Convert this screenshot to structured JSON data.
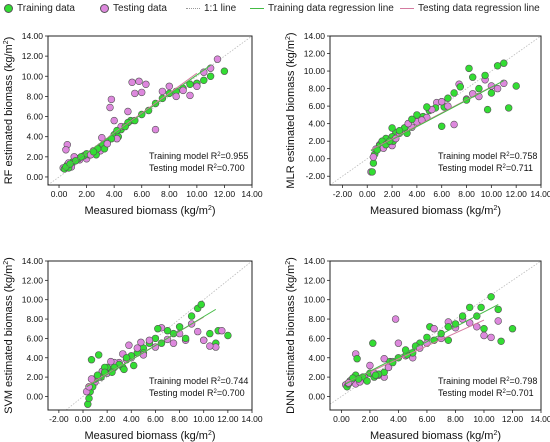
{
  "legend": {
    "training": "Training data",
    "testing": "Testing data",
    "one_to_one": "1:1 line",
    "train_reg": "Training data regression line",
    "test_reg": "Testing data regression line"
  },
  "colors": {
    "training": "#33dd33",
    "testing": "#dd88dd",
    "marker_edge": "#555555",
    "one_to_one": "#c8c8c8",
    "train_reg": "#44bb44",
    "test_reg": "#d47aa0"
  },
  "chart_data": [
    {
      "type": "scatter",
      "xlabel": "Measured biomass (kg/m",
      "ylabel": "RF estimated biomass (kg/m",
      "label_sup": "2",
      "label_close": ")",
      "xlim": [
        -0.8,
        14
      ],
      "ylim": [
        -0.8,
        14
      ],
      "xticks": [
        "0.00",
        "2.00",
        "4.00",
        "6.00",
        "8.00",
        "10.00",
        "12.00",
        "14.00"
      ],
      "yticks": [
        "0.00",
        "2.00",
        "4.00",
        "6.00",
        "8.00",
        "10.00",
        "12.00",
        "14.00"
      ],
      "train_r2": "Training model R2=0.955",
      "test_r2": "Testing model R2=0.700",
      "train_line": [
        [
          0.3,
          0.7
        ],
        [
          11,
          11.1
        ]
      ],
      "test_line": [
        [
          0.3,
          0.7
        ],
        [
          10,
          10.3
        ]
      ],
      "training": [
        [
          0.4,
          0.8
        ],
        [
          0.5,
          1.0
        ],
        [
          0.6,
          1.2
        ],
        [
          0.7,
          0.9
        ],
        [
          0.8,
          1.3
        ],
        [
          1.0,
          1.5
        ],
        [
          1.2,
          1.6
        ],
        [
          1.4,
          1.8
        ],
        [
          1.6,
          2.0
        ],
        [
          1.8,
          2.1
        ],
        [
          2.0,
          2.3
        ],
        [
          2.2,
          2.2
        ],
        [
          2.5,
          2.5
        ],
        [
          2.8,
          2.8
        ],
        [
          3.0,
          3.0
        ],
        [
          3.2,
          3.2
        ],
        [
          3.5,
          3.5
        ],
        [
          3.8,
          3.8
        ],
        [
          4.0,
          4.2
        ],
        [
          4.2,
          4.6
        ],
        [
          4.5,
          4.7
        ],
        [
          4.8,
          5.0
        ],
        [
          5.0,
          5.4
        ],
        [
          5.5,
          5.6
        ],
        [
          6.0,
          6.2
        ],
        [
          6.5,
          6.6
        ],
        [
          7.0,
          7.3
        ],
        [
          7.5,
          7.8
        ],
        [
          8.0,
          8.3
        ],
        [
          8.5,
          8.5
        ],
        [
          9.0,
          8.8
        ],
        [
          9.5,
          9.2
        ],
        [
          10.0,
          9.3
        ],
        [
          10.5,
          9.6
        ],
        [
          11.0,
          10.0
        ],
        [
          12.0,
          10.5
        ],
        [
          3.3,
          2.8
        ],
        [
          2.7,
          2.2
        ],
        [
          4.3,
          4.0
        ],
        [
          5.2,
          5.6
        ]
      ],
      "testing": [
        [
          0.3,
          0.9
        ],
        [
          0.5,
          2.7
        ],
        [
          0.6,
          3.2
        ],
        [
          0.7,
          1.4
        ],
        [
          0.9,
          1.0
        ],
        [
          1.1,
          2.0
        ],
        [
          1.5,
          1.7
        ],
        [
          2.0,
          1.8
        ],
        [
          2.5,
          2.6
        ],
        [
          3.0,
          2.6
        ],
        [
          3.5,
          3.3
        ],
        [
          3.7,
          6.9
        ],
        [
          3.8,
          7.7
        ],
        [
          4.0,
          5.6
        ],
        [
          4.2,
          3.8
        ],
        [
          4.5,
          5.0
        ],
        [
          5.0,
          6.5
        ],
        [
          5.3,
          9.4
        ],
        [
          5.5,
          8.3
        ],
        [
          5.8,
          9.5
        ],
        [
          6.0,
          8.4
        ],
        [
          6.3,
          9.2
        ],
        [
          7.0,
          4.7
        ],
        [
          7.5,
          8.5
        ],
        [
          8.0,
          9.0
        ],
        [
          8.5,
          8.0
        ],
        [
          9.0,
          8.6
        ],
        [
          9.5,
          8.1
        ],
        [
          10.0,
          9.0
        ],
        [
          10.5,
          10.4
        ],
        [
          11.0,
          10.8
        ],
        [
          11.5,
          11.7
        ],
        [
          3.1,
          3.9
        ],
        [
          2.3,
          2.2
        ]
      ]
    },
    {
      "type": "scatter",
      "xlabel": "Measured biomass (kg/m",
      "ylabel": "MLR estimated biomass (kg/m",
      "label_sup": "2",
      "label_close": ")",
      "xlim": [
        -3,
        14
      ],
      "ylim": [
        -3,
        14
      ],
      "xticks": [
        "-2.00",
        "0.00",
        "2.00",
        "4.00",
        "6.00",
        "8.00",
        "10.00",
        "12.00",
        "14.00"
      ],
      "yticks": [
        "-2.00",
        "0.00",
        "2.00",
        "4.00",
        "6.00",
        "8.00",
        "10.00",
        "12.00",
        "14.00"
      ],
      "train_r2": "Training model R2=0.758",
      "test_r2": "Testing model R2=0.711",
      "train_line": [
        [
          0.3,
          0.9
        ],
        [
          11,
          8.9
        ]
      ],
      "test_line": [
        [
          0.3,
          1.0
        ],
        [
          10,
          8.2
        ]
      ],
      "training": [
        [
          0.4,
          -1.5
        ],
        [
          0.5,
          -0.5
        ],
        [
          0.6,
          0.5
        ],
        [
          0.8,
          1.0
        ],
        [
          1.0,
          1.5
        ],
        [
          1.2,
          2.0
        ],
        [
          1.5,
          2.3
        ],
        [
          1.8,
          2.0
        ],
        [
          2.0,
          2.5
        ],
        [
          2.3,
          3.0
        ],
        [
          2.6,
          3.2
        ],
        [
          3.0,
          3.5
        ],
        [
          3.3,
          4.0
        ],
        [
          3.6,
          4.5
        ],
        [
          4.0,
          5.0
        ],
        [
          4.5,
          4.8
        ],
        [
          5.0,
          5.5
        ],
        [
          5.5,
          5.8
        ],
        [
          6.0,
          6.5
        ],
        [
          6.5,
          6.9
        ],
        [
          7.0,
          7.5
        ],
        [
          7.5,
          8.2
        ],
        [
          8.0,
          6.7
        ],
        [
          8.5,
          9.3
        ],
        [
          9.0,
          8.0
        ],
        [
          9.5,
          9.5
        ],
        [
          10.0,
          7.5
        ],
        [
          10.5,
          10.6
        ],
        [
          11.0,
          10.9
        ],
        [
          12.0,
          8.3
        ],
        [
          6.2,
          5.9
        ],
        [
          4.8,
          5.9
        ],
        [
          3.2,
          2.9
        ],
        [
          2.1,
          2.0
        ],
        [
          9.7,
          5.6
        ],
        [
          11.4,
          5.8
        ],
        [
          8.2,
          10.3
        ],
        [
          6.0,
          3.7
        ],
        [
          2.0,
          3.5
        ],
        [
          1.5,
          1.6
        ]
      ],
      "testing": [
        [
          0.3,
          -1.5
        ],
        [
          0.5,
          0.2
        ],
        [
          0.7,
          1.1
        ],
        [
          1.0,
          1.6
        ],
        [
          1.3,
          1.2
        ],
        [
          1.6,
          2.1
        ],
        [
          2.0,
          1.5
        ],
        [
          2.3,
          2.3
        ],
        [
          2.6,
          2.9
        ],
        [
          3.0,
          3.5
        ],
        [
          3.3,
          4.0
        ],
        [
          3.6,
          3.6
        ],
        [
          4.0,
          4.2
        ],
        [
          4.4,
          4.4
        ],
        [
          4.8,
          4.7
        ],
        [
          5.2,
          5.6
        ],
        [
          5.6,
          6.4
        ],
        [
          6.0,
          6.5
        ],
        [
          6.5,
          6.0
        ],
        [
          7.0,
          3.9
        ],
        [
          7.4,
          8.5
        ],
        [
          8.0,
          6.8
        ],
        [
          8.5,
          7.4
        ],
        [
          9.0,
          7.1
        ],
        [
          9.5,
          9.0
        ],
        [
          10.0,
          8.3
        ],
        [
          10.5,
          8.0
        ],
        [
          11.0,
          8.6
        ]
      ]
    },
    {
      "type": "scatter",
      "xlabel": "Measured biomass (kg/m",
      "ylabel": "SVM estimated biomass (kg/m",
      "label_sup": "2",
      "label_close": ")",
      "xlim": [
        -2.9,
        14
      ],
      "ylim": [
        -1.4,
        14
      ],
      "xticks": [
        "-2.00",
        "0.00",
        "2.00",
        "4.00",
        "6.00",
        "8.00",
        "10.00",
        "12.00",
        "14.00"
      ],
      "yticks": [
        "0.00",
        "2.00",
        "4.00",
        "6.00",
        "8.00",
        "10.00",
        "12.00",
        "14.00"
      ],
      "train_r2": "Training model R2=0.744",
      "test_r2": "Testing model R2=0.700",
      "train_line": [
        [
          0.3,
          1.0
        ],
        [
          11,
          9.0
        ]
      ],
      "test_line": [
        [
          0.3,
          1.1
        ],
        [
          10,
          8.2
        ]
      ],
      "training": [
        [
          0.4,
          -0.8
        ],
        [
          0.5,
          -0.2
        ],
        [
          0.6,
          0.5
        ],
        [
          0.8,
          1.0
        ],
        [
          1.0,
          1.8
        ],
        [
          1.2,
          2.2
        ],
        [
          1.5,
          2.0
        ],
        [
          1.8,
          2.5
        ],
        [
          2.0,
          3.0
        ],
        [
          2.3,
          2.8
        ],
        [
          2.6,
          3.0
        ],
        [
          3.0,
          3.3
        ],
        [
          3.3,
          3.0
        ],
        [
          3.6,
          4.0
        ],
        [
          4.0,
          4.2
        ],
        [
          4.5,
          4.5
        ],
        [
          5.0,
          5.0
        ],
        [
          5.5,
          5.5
        ],
        [
          6.0,
          6.0
        ],
        [
          6.5,
          5.5
        ],
        [
          7.0,
          6.8
        ],
        [
          7.5,
          6.5
        ],
        [
          8.0,
          7.2
        ],
        [
          8.5,
          6.0
        ],
        [
          9.0,
          8.3
        ],
        [
          9.5,
          9.1
        ],
        [
          10.0,
          5.8
        ],
        [
          10.5,
          6.5
        ],
        [
          11.0,
          5.5
        ],
        [
          12.0,
          6.3
        ],
        [
          6.2,
          7.0
        ],
        [
          5.0,
          4.5
        ],
        [
          3.4,
          2.8
        ],
        [
          2.4,
          2.5
        ],
        [
          9.8,
          9.5
        ],
        [
          1.8,
          3.0
        ],
        [
          1.3,
          4.3
        ],
        [
          0.7,
          3.8
        ],
        [
          4.2,
          3.2
        ],
        [
          11.2,
          6.8
        ]
      ],
      "testing": [
        [
          0.3,
          0.5
        ],
        [
          0.5,
          1.0
        ],
        [
          0.7,
          1.8
        ],
        [
          1.0,
          1.5
        ],
        [
          1.3,
          2.0
        ],
        [
          1.6,
          2.6
        ],
        [
          2.0,
          2.4
        ],
        [
          2.3,
          3.6
        ],
        [
          2.6,
          3.5
        ],
        [
          3.0,
          3.5
        ],
        [
          3.3,
          4.4
        ],
        [
          3.6,
          3.8
        ],
        [
          4.0,
          4.0
        ],
        [
          4.5,
          5.0
        ],
        [
          5.0,
          4.3
        ],
        [
          5.5,
          5.8
        ],
        [
          6.0,
          5.1
        ],
        [
          6.5,
          7.1
        ],
        [
          7.0,
          5.9
        ],
        [
          7.5,
          5.5
        ],
        [
          8.0,
          6.5
        ],
        [
          8.5,
          5.8
        ],
        [
          9.0,
          7.5
        ],
        [
          9.5,
          6.7
        ],
        [
          10.0,
          5.8
        ],
        [
          10.5,
          5.2
        ],
        [
          11.0,
          5.1
        ],
        [
          11.5,
          6.8
        ],
        [
          3.8,
          5.3
        ],
        [
          4.8,
          5.6
        ]
      ]
    },
    {
      "type": "scatter",
      "xlabel": "Measured biomass (kg/m",
      "ylabel": "DNN estimated biomass (kg/m",
      "label_sup": "2",
      "label_close": ")",
      "xlim": [
        -0.8,
        14
      ],
      "ylim": [
        -1.4,
        14
      ],
      "xticks": [
        "0.00",
        "2.00",
        "4.00",
        "6.00",
        "8.00",
        "10.00",
        "12.00",
        "14.00"
      ],
      "yticks": [
        "0.00",
        "2.00",
        "4.00",
        "6.00",
        "8.00",
        "10.00",
        "12.00",
        "14.00"
      ],
      "train_r2": "Training model R2=0.798",
      "test_r2": "Testing model R2=0.701",
      "train_line": [
        [
          0.3,
          1.3
        ],
        [
          11,
          9.5
        ]
      ],
      "test_line": [
        [
          0.3,
          1.4
        ],
        [
          10,
          7.9
        ]
      ],
      "training": [
        [
          0.4,
          1.0
        ],
        [
          0.5,
          1.3
        ],
        [
          0.6,
          1.6
        ],
        [
          0.8,
          1.9
        ],
        [
          1.0,
          2.2
        ],
        [
          1.2,
          1.8
        ],
        [
          1.5,
          2.0
        ],
        [
          1.8,
          1.6
        ],
        [
          2.0,
          2.4
        ],
        [
          2.3,
          2.0
        ],
        [
          2.6,
          2.3
        ],
        [
          3.0,
          2.5
        ],
        [
          3.3,
          3.0
        ],
        [
          3.6,
          3.5
        ],
        [
          4.0,
          4.0
        ],
        [
          4.5,
          4.8
        ],
        [
          5.0,
          4.5
        ],
        [
          5.5,
          5.5
        ],
        [
          6.0,
          6.1
        ],
        [
          6.5,
          5.8
        ],
        [
          7.0,
          6.5
        ],
        [
          7.5,
          7.2
        ],
        [
          8.0,
          7.5
        ],
        [
          8.5,
          8.3
        ],
        [
          9.0,
          9.2
        ],
        [
          9.5,
          8.3
        ],
        [
          10.0,
          7.0
        ],
        [
          10.5,
          10.3
        ],
        [
          11.0,
          9.0
        ],
        [
          12.0,
          7.0
        ],
        [
          6.2,
          7.2
        ],
        [
          5.2,
          5.2
        ],
        [
          3.4,
          3.6
        ],
        [
          2.4,
          2.2
        ],
        [
          9.8,
          9.2
        ],
        [
          7.5,
          5.8
        ],
        [
          2.2,
          5.5
        ],
        [
          1.1,
          3.9
        ],
        [
          11.2,
          5.7
        ],
        [
          4.6,
          4.3
        ]
      ],
      "testing": [
        [
          0.3,
          1.2
        ],
        [
          0.5,
          1.4
        ],
        [
          0.7,
          1.7
        ],
        [
          1.0,
          1.3
        ],
        [
          1.3,
          1.5
        ],
        [
          1.6,
          2.0
        ],
        [
          2.0,
          3.2
        ],
        [
          2.3,
          2.4
        ],
        [
          2.6,
          2.2
        ],
        [
          3.0,
          2.0
        ],
        [
          3.3,
          3.0
        ],
        [
          3.6,
          3.6
        ],
        [
          3.8,
          8.0
        ],
        [
          4.0,
          5.5
        ],
        [
          4.5,
          4.2
        ],
        [
          5.0,
          4.0
        ],
        [
          5.5,
          5.0
        ],
        [
          6.0,
          5.5
        ],
        [
          6.5,
          7.0
        ],
        [
          7.0,
          6.0
        ],
        [
          7.5,
          7.7
        ],
        [
          8.0,
          7.1
        ],
        [
          8.5,
          8.0
        ],
        [
          9.0,
          7.6
        ],
        [
          9.5,
          7.2
        ],
        [
          10.0,
          6.3
        ],
        [
          10.5,
          6.1
        ],
        [
          11.0,
          7.8
        ],
        [
          1.0,
          4.4
        ],
        [
          3.0,
          3.9
        ]
      ]
    }
  ]
}
